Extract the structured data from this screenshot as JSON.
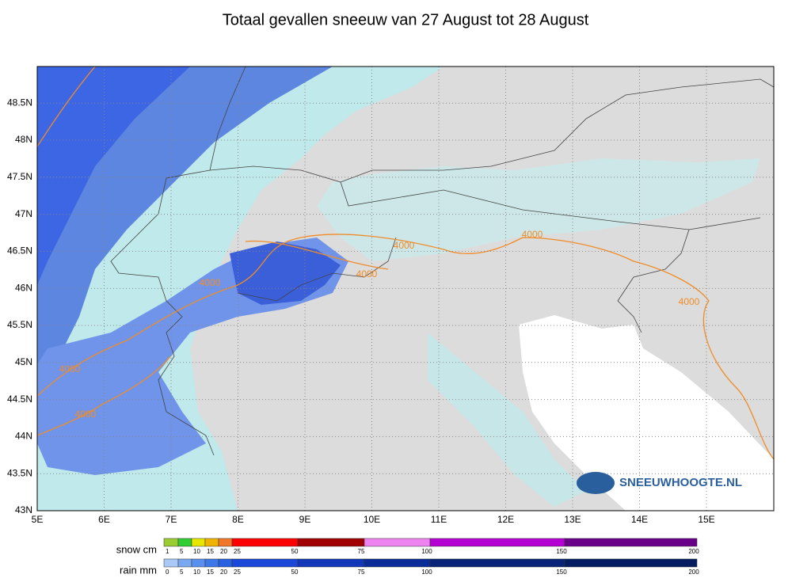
{
  "title": "Totaal gevallen sneeuw van 27 August tot 28 August",
  "map": {
    "lat_labels": [
      "43N",
      "43.5N",
      "44N",
      "44.5N",
      "45N",
      "45.5N",
      "46N",
      "46.5N",
      "47N",
      "47.5N",
      "48N",
      "48.5N"
    ],
    "lon_labels": [
      "5E",
      "6E",
      "7E",
      "8E",
      "9E",
      "10E",
      "11E",
      "12E",
      "13E",
      "14E",
      "15E"
    ],
    "contour_labels": [
      "4000",
      "4000",
      "4000",
      "4000",
      "4000",
      "4000",
      "4000"
    ]
  },
  "legend": {
    "snow": {
      "label": "snow cm",
      "ticks": [
        1,
        5,
        10,
        15,
        20,
        25,
        50,
        75,
        100,
        150,
        200
      ],
      "colors": [
        "#9acd32",
        "#32cd32",
        "#e6e600",
        "#f0b400",
        "#f07828",
        "#ff0000",
        "#a00000",
        "#ee82ee",
        "#b400d2",
        "#6a008a"
      ]
    },
    "rain": {
      "label": "rain mm",
      "ticks": [
        0,
        5,
        10,
        15,
        20,
        25,
        50,
        75,
        100,
        150,
        200
      ],
      "colors": [
        "#a8c8f8",
        "#78a8f0",
        "#5890f0",
        "#3c78e8",
        "#2860e0",
        "#1a48d8",
        "#1038b8",
        "#0a2c98",
        "#082478",
        "#061c60"
      ]
    }
  },
  "logo": "SNEEUWHOOGTE.NL"
}
